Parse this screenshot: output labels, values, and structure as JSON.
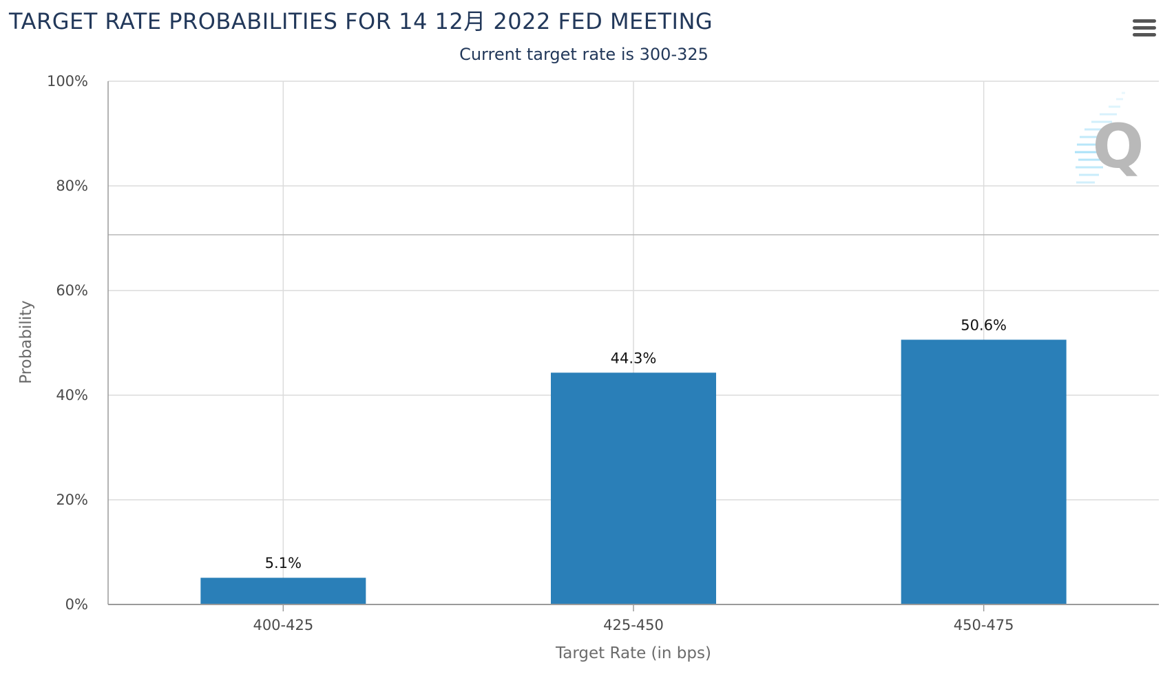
{
  "chart_data": {
    "type": "bar",
    "title": "TARGET RATE PROBABILITIES FOR 14 12月 2022 FED MEETING",
    "subtitle": "Current target rate is 300-325",
    "xlabel": "Target Rate (in bps)",
    "ylabel": "Probability",
    "categories": [
      "400-425",
      "425-450",
      "450-475"
    ],
    "values": [
      5.1,
      44.3,
      50.6
    ],
    "data_labels": [
      "5.1%",
      "44.3%",
      "50.6%"
    ],
    "ylim": [
      0,
      100
    ],
    "y_ticks": [
      0,
      20,
      40,
      60,
      80,
      100
    ],
    "y_tick_labels": [
      "0%",
      "20%",
      "40%",
      "60%",
      "80%",
      "100%"
    ],
    "grid": true,
    "legend": "none",
    "colors": {
      "bar": "#2a7fb8",
      "grid": "#dcdcdc",
      "axis": "#9a9a9a",
      "title": "#22385a"
    }
  },
  "toolbar": {
    "menu_icon": "hamburger-menu-icon"
  },
  "watermark": {
    "icon": "q-logo-icon"
  }
}
